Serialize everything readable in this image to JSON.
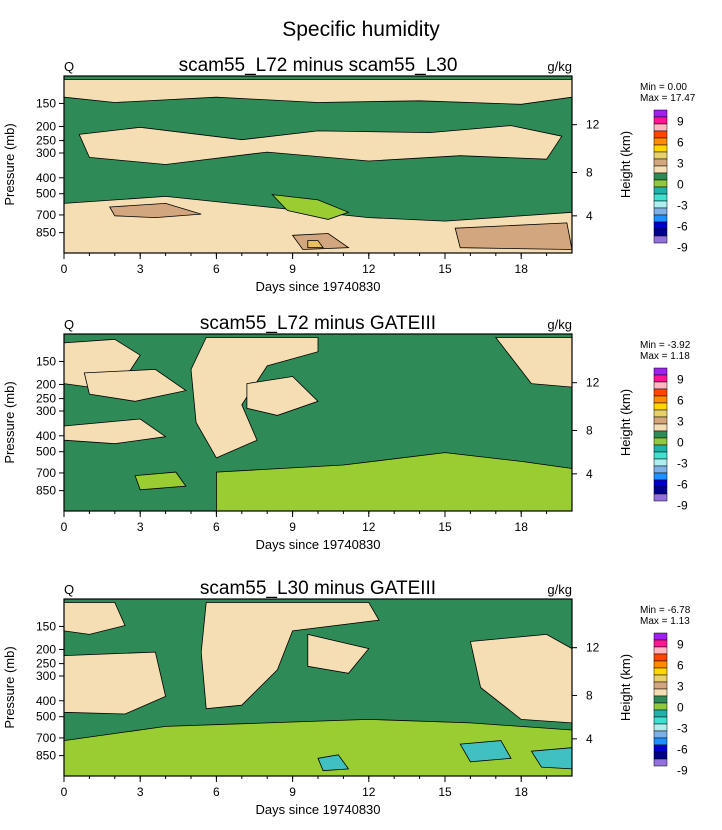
{
  "figure_title": "Specific humidity",
  "colorbar_labels": [
    "9",
    "6",
    "3",
    "0",
    "-3",
    "-6",
    "-9"
  ],
  "colorbar_colors": [
    "#a020f0",
    "#ff1493",
    "#ffb6c1",
    "#ff4500",
    "#ff8c00",
    "#ffd700",
    "#e8d06a",
    "#d2a67e",
    "#f5deb3",
    "#2e8b57",
    "#90c840",
    "#20b2aa",
    "#40e0d0",
    "#afeeee",
    "#7eb0e8",
    "#1e90ff",
    "#0000cd",
    "#00008b",
    "#9370db"
  ],
  "shade_colors": {
    "zero_band": "#f5deb3",
    "neg_small": "#2e8b57",
    "neg_mid": "#9acd32",
    "pos_small": "#d2a67e",
    "pos_mid": "#e8c060",
    "neg_large": "#40c0c0"
  },
  "chart_data": [
    {
      "type": "heatmap",
      "title": "scam55_L72 minus scam55_L30",
      "left_label": "Q",
      "units": "g/kg",
      "xlabel": "Days since 19740830",
      "ylabel": "Pressure (mb)",
      "y2label": "Height (km)",
      "x_ticks": [
        "0",
        "3",
        "6",
        "9",
        "12",
        "15",
        "18"
      ],
      "y_ticks": [
        "150",
        "200",
        "250",
        "300",
        "400",
        "500",
        "700",
        "850"
      ],
      "y2_ticks": [
        "12",
        "8",
        "4"
      ],
      "min_label": "Min =  0.00",
      "max_label": "Max =  17.47",
      "xlim": [
        0,
        20
      ],
      "levels": [
        -9,
        -6,
        -3,
        0,
        3,
        6,
        9
      ]
    },
    {
      "type": "heatmap",
      "title": "scam55_L72 minus GATEIII",
      "left_label": "Q",
      "units": "g/kg",
      "xlabel": "Days since 19740830",
      "ylabel": "Pressure (mb)",
      "y2label": "Height (km)",
      "x_ticks": [
        "0",
        "3",
        "6",
        "9",
        "12",
        "15",
        "18"
      ],
      "y_ticks": [
        "150",
        "200",
        "250",
        "300",
        "400",
        "500",
        "700",
        "850"
      ],
      "y2_ticks": [
        "12",
        "8",
        "4"
      ],
      "min_label": "Min =  -3.92",
      "max_label": "Max =  1.18",
      "xlim": [
        0,
        20
      ],
      "levels": [
        -9,
        -6,
        -3,
        0,
        3,
        6,
        9
      ]
    },
    {
      "type": "heatmap",
      "title": "scam55_L30 minus GATEIII",
      "left_label": "Q",
      "units": "g/kg",
      "xlabel": "Days since 19740830",
      "ylabel": "Pressure (mb)",
      "y2label": "Height (km)",
      "x_ticks": [
        "0",
        "3",
        "6",
        "9",
        "12",
        "15",
        "18"
      ],
      "y_ticks": [
        "150",
        "200",
        "250",
        "300",
        "400",
        "500",
        "700",
        "850"
      ],
      "y2_ticks": [
        "12",
        "8",
        "4"
      ],
      "min_label": "Min =  -6.78",
      "max_label": "Max =  1.13",
      "xlim": [
        0,
        20
      ],
      "levels": [
        -9,
        -6,
        -3,
        0,
        3,
        6,
        9
      ]
    }
  ]
}
